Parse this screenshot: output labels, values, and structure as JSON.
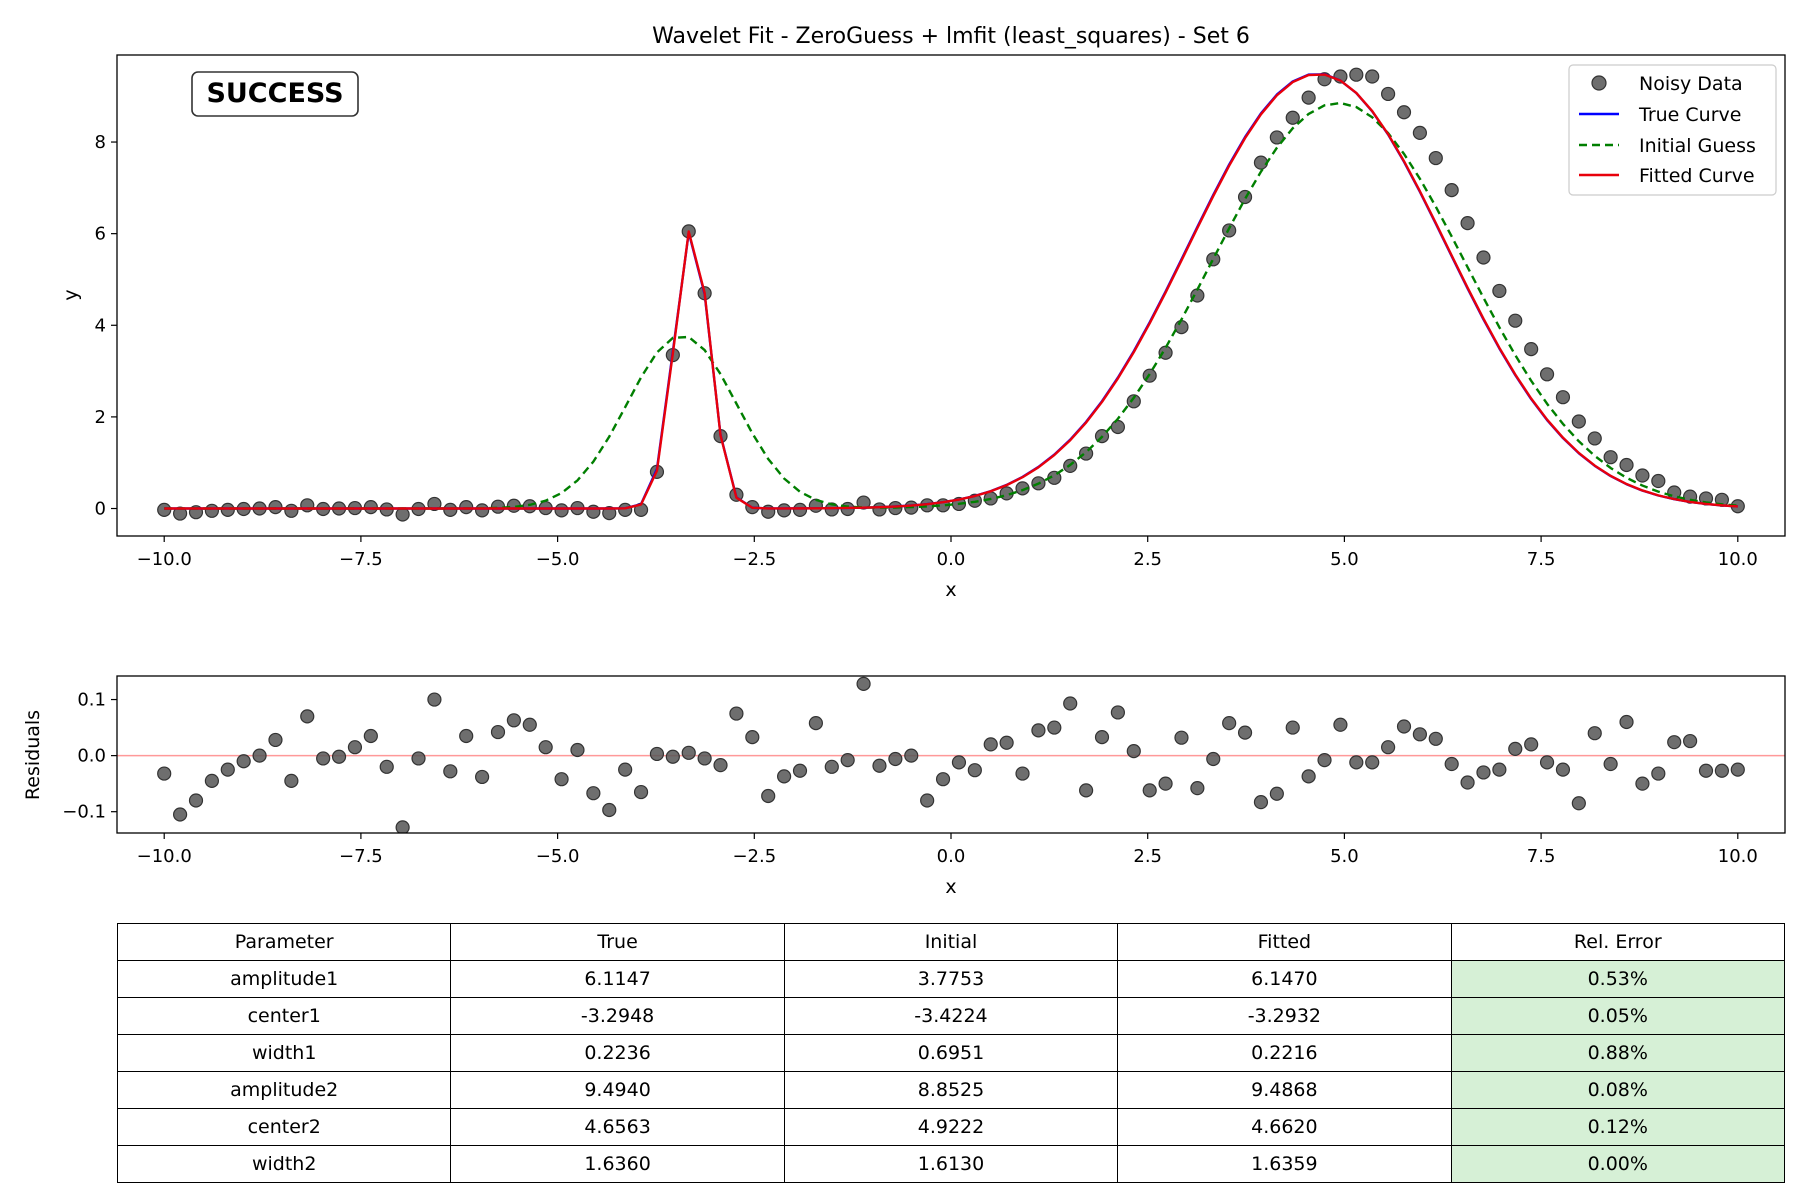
{
  "figure": {
    "title": "Wavelet Fit - ZeroGuess + lmfit (least_squares) - Set 6",
    "status_badge": "SUCCESS",
    "colors": {
      "data": "#555555",
      "true_curve": "#0000ff",
      "initial_guess": "#007f00",
      "fitted_curve": "#e8000b",
      "badge_text": "#007f00",
      "residual_zero_line": "#ff9999",
      "rel_error_cell": "#d6f0d6"
    }
  },
  "chart_data": [
    {
      "type": "line",
      "name": "main-fit",
      "xlabel": "x",
      "ylabel": "y",
      "xlim": [
        -10.6,
        10.6
      ],
      "ylim": [
        -0.6,
        9.9
      ],
      "x_ticks": [
        -10.0,
        -7.5,
        -5.0,
        -2.5,
        0.0,
        2.5,
        5.0,
        7.5,
        10.0
      ],
      "x_tick_labels": [
        "−10.0",
        "−7.5",
        "−5.0",
        "−2.5",
        "0.0",
        "2.5",
        "5.0",
        "7.5",
        "10.0"
      ],
      "y_ticks": [
        0,
        2,
        4,
        6,
        8
      ],
      "y_tick_labels": [
        "0",
        "2",
        "4",
        "6",
        "8"
      ],
      "grid": false,
      "legend_position": "top-right",
      "legend": [
        "Noisy Data",
        "True Curve",
        "Initial Guess",
        "Fitted Curve"
      ],
      "x_samples": {
        "start": -10.0,
        "stop": 10.0,
        "count": 100
      },
      "series": [
        {
          "name": "Noisy Data",
          "style": "markers",
          "y": [
            -0.03,
            -0.11,
            -0.08,
            -0.05,
            -0.03,
            -0.01,
            0.0,
            0.03,
            -0.05,
            0.07,
            -0.01,
            0.0,
            0.01,
            0.03,
            -0.02,
            -0.13,
            -0.01,
            0.1,
            -0.03,
            0.03,
            -0.04,
            0.04,
            0.06,
            0.05,
            0.01,
            -0.04,
            0.01,
            -0.07,
            -0.1,
            -0.03,
            -0.03,
            0.8,
            3.35,
            6.05,
            4.7,
            1.58,
            0.3,
            0.03,
            -0.07,
            -0.04,
            -0.03,
            0.06,
            -0.02,
            -0.01,
            0.13,
            -0.02,
            0.01,
            0.02,
            0.07,
            0.07,
            0.1,
            0.17,
            0.22,
            0.33,
            0.44,
            0.55,
            0.67,
            0.93,
            1.2,
            1.58,
            1.78,
            2.34,
            2.9,
            3.4,
            3.96,
            4.65,
            5.44,
            6.07,
            6.8,
            7.55,
            8.1,
            8.53,
            8.97,
            9.37,
            9.43,
            9.47,
            9.43,
            9.05,
            8.65,
            8.2,
            7.65,
            6.95,
            6.23,
            5.48,
            4.75,
            4.1,
            3.48,
            2.93,
            2.43,
            1.9,
            1.53,
            1.12,
            0.95,
            0.72,
            0.6,
            0.35,
            0.26,
            0.22,
            0.19,
            0.05
          ]
        },
        {
          "name": "True Curve",
          "style": "line",
          "model": {
            "amplitude1": 6.1147,
            "center1": -3.2948,
            "width1": 0.2236,
            "amplitude2": 9.494,
            "center2": 4.6563,
            "width2": 1.636
          }
        },
        {
          "name": "Initial Guess",
          "style": "dashed",
          "model": {
            "amplitude1": 3.7753,
            "center1": -3.4224,
            "width1": 0.6951,
            "amplitude2": 8.8525,
            "center2": 4.9222,
            "width2": 1.613
          }
        },
        {
          "name": "Fitted Curve",
          "style": "line",
          "model": {
            "amplitude1": 6.147,
            "center1": -3.2932,
            "width1": 0.2216,
            "amplitude2": 9.4868,
            "center2": 4.662,
            "width2": 1.6359
          }
        }
      ]
    },
    {
      "type": "scatter",
      "name": "residuals",
      "xlabel": "x",
      "ylabel": "Residuals",
      "xlim": [
        -10.6,
        10.6
      ],
      "ylim": [
        -0.138,
        0.142
      ],
      "x_ticks": [
        -10.0,
        -7.5,
        -5.0,
        -2.5,
        0.0,
        2.5,
        5.0,
        7.5,
        10.0
      ],
      "x_tick_labels": [
        "−10.0",
        "−7.5",
        "−5.0",
        "−2.5",
        "0.0",
        "2.5",
        "5.0",
        "7.5",
        "10.0"
      ],
      "y_ticks": [
        -0.1,
        0.0,
        0.1
      ],
      "y_tick_labels": [
        "−0.1",
        "0.0",
        "0.1"
      ],
      "grid": false,
      "reference_line": 0.0,
      "x_samples": {
        "start": -10.0,
        "stop": 10.0,
        "count": 100
      },
      "values": [
        -0.032,
        -0.105,
        -0.08,
        -0.045,
        -0.025,
        -0.01,
        0.0,
        0.028,
        -0.045,
        0.07,
        -0.005,
        -0.002,
        0.015,
        0.035,
        -0.02,
        -0.128,
        -0.005,
        0.1,
        -0.028,
        0.035,
        -0.038,
        0.042,
        0.063,
        0.055,
        0.015,
        -0.042,
        0.01,
        -0.067,
        -0.097,
        -0.025,
        -0.065,
        0.003,
        -0.002,
        0.005,
        -0.005,
        -0.017,
        0.075,
        0.033,
        -0.072,
        -0.037,
        -0.027,
        0.058,
        -0.02,
        -0.008,
        0.128,
        -0.018,
        -0.006,
        0.0,
        -0.08,
        -0.042,
        -0.012,
        -0.026,
        0.02,
        0.023,
        -0.032,
        0.045,
        0.05,
        0.093,
        -0.062,
        0.033,
        0.077,
        0.008,
        -0.062,
        -0.05,
        0.032,
        -0.058,
        -0.006,
        0.058,
        0.041,
        -0.083,
        -0.068,
        0.05,
        -0.037,
        -0.008,
        0.055,
        -0.012,
        -0.012,
        0.015,
        0.052,
        0.038,
        0.03,
        -0.015,
        -0.048,
        -0.03,
        -0.025,
        0.012,
        0.02,
        -0.012,
        -0.025,
        -0.085,
        0.04,
        -0.015,
        0.06,
        -0.05,
        -0.032,
        0.024,
        0.026,
        -0.027,
        -0.027,
        -0.025
      ]
    },
    {
      "type": "table",
      "name": "parameter-table",
      "columns": [
        "Parameter",
        "True",
        "Initial",
        "Fitted",
        "Rel. Error"
      ],
      "rows": [
        [
          "amplitude1",
          "6.1147",
          "3.7753",
          "6.1470",
          "0.53%"
        ],
        [
          "center1",
          "-3.2948",
          "-3.4224",
          "-3.2932",
          "0.05%"
        ],
        [
          "width1",
          "0.2236",
          "0.6951",
          "0.2216",
          "0.88%"
        ],
        [
          "amplitude2",
          "9.4940",
          "8.8525",
          "9.4868",
          "0.08%"
        ],
        [
          "center2",
          "4.6563",
          "4.9222",
          "4.6620",
          "0.12%"
        ],
        [
          "width2",
          "1.6360",
          "1.6130",
          "1.6359",
          "0.00%"
        ]
      ]
    }
  ]
}
